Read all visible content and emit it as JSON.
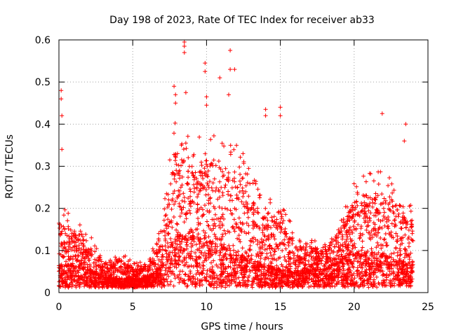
{
  "chart_data": {
    "type": "scatter",
    "title": "Day 198 of 2023, Rate Of TEC Index for receiver ab33",
    "xlabel": "GPS time / hours",
    "ylabel": "ROTI / TECUs",
    "xlim": [
      0,
      25
    ],
    "ylim": [
      0,
      0.6
    ],
    "xticks": [
      0,
      5,
      10,
      15,
      20,
      25
    ],
    "yticks": [
      0,
      0.1,
      0.2,
      0.3,
      0.4,
      0.5,
      0.6
    ],
    "xtick_labels": [
      "0",
      "5",
      "10",
      "15",
      "20",
      "25"
    ],
    "ytick_labels": [
      "0",
      "0.1",
      "0.2",
      "0.3",
      "0.4",
      "0.5",
      "0.6"
    ],
    "grid": true,
    "grid_style": "dotted",
    "marker": "plus",
    "marker_color": "#ff0000",
    "x_data_range": [
      0,
      24
    ],
    "envelope_hourly": [
      {
        "x": 0.0,
        "median": 0.06,
        "p95": 0.2
      },
      {
        "x": 1.0,
        "median": 0.06,
        "p95": 0.16
      },
      {
        "x": 2.0,
        "median": 0.05,
        "p95": 0.13
      },
      {
        "x": 3.0,
        "median": 0.035,
        "p95": 0.08
      },
      {
        "x": 4.0,
        "median": 0.03,
        "p95": 0.09
      },
      {
        "x": 5.0,
        "median": 0.03,
        "p95": 0.07
      },
      {
        "x": 6.0,
        "median": 0.03,
        "p95": 0.07
      },
      {
        "x": 7.0,
        "median": 0.06,
        "p95": 0.17
      },
      {
        "x": 8.0,
        "median": 0.13,
        "p95": 0.4
      },
      {
        "x": 9.0,
        "median": 0.12,
        "p95": 0.32
      },
      {
        "x": 10.0,
        "median": 0.11,
        "p95": 0.36
      },
      {
        "x": 11.0,
        "median": 0.1,
        "p95": 0.33
      },
      {
        "x": 12.0,
        "median": 0.09,
        "p95": 0.34
      },
      {
        "x": 13.0,
        "median": 0.07,
        "p95": 0.26
      },
      {
        "x": 14.0,
        "median": 0.06,
        "p95": 0.2
      },
      {
        "x": 15.0,
        "median": 0.05,
        "p95": 0.22
      },
      {
        "x": 16.0,
        "median": 0.045,
        "p95": 0.12
      },
      {
        "x": 17.0,
        "median": 0.05,
        "p95": 0.12
      },
      {
        "x": 18.0,
        "median": 0.05,
        "p95": 0.11
      },
      {
        "x": 19.0,
        "median": 0.07,
        "p95": 0.16
      },
      {
        "x": 20.0,
        "median": 0.09,
        "p95": 0.24
      },
      {
        "x": 21.0,
        "median": 0.09,
        "p95": 0.26
      },
      {
        "x": 22.0,
        "median": 0.08,
        "p95": 0.27
      },
      {
        "x": 23.0,
        "median": 0.07,
        "p95": 0.24
      },
      {
        "x": 24.0,
        "median": 0.06,
        "p95": 0.18
      }
    ],
    "notable_points": [
      {
        "x": 0.15,
        "y": 0.48
      },
      {
        "x": 0.15,
        "y": 0.46
      },
      {
        "x": 0.2,
        "y": 0.42
      },
      {
        "x": 0.2,
        "y": 0.34
      },
      {
        "x": 7.8,
        "y": 0.49
      },
      {
        "x": 7.9,
        "y": 0.47
      },
      {
        "x": 7.9,
        "y": 0.45
      },
      {
        "x": 8.5,
        "y": 0.595
      },
      {
        "x": 8.5,
        "y": 0.585
      },
      {
        "x": 8.5,
        "y": 0.57
      },
      {
        "x": 8.6,
        "y": 0.475
      },
      {
        "x": 9.9,
        "y": 0.545
      },
      {
        "x": 9.9,
        "y": 0.525
      },
      {
        "x": 10.0,
        "y": 0.465
      },
      {
        "x": 10.0,
        "y": 0.445
      },
      {
        "x": 10.9,
        "y": 0.51
      },
      {
        "x": 11.6,
        "y": 0.575
      },
      {
        "x": 11.6,
        "y": 0.53
      },
      {
        "x": 11.9,
        "y": 0.53
      },
      {
        "x": 11.5,
        "y": 0.47
      },
      {
        "x": 14.0,
        "y": 0.435
      },
      {
        "x": 14.0,
        "y": 0.42
      },
      {
        "x": 15.0,
        "y": 0.44
      },
      {
        "x": 15.0,
        "y": 0.42
      },
      {
        "x": 21.9,
        "y": 0.425
      },
      {
        "x": 23.5,
        "y": 0.4
      },
      {
        "x": 23.4,
        "y": 0.36
      }
    ]
  }
}
